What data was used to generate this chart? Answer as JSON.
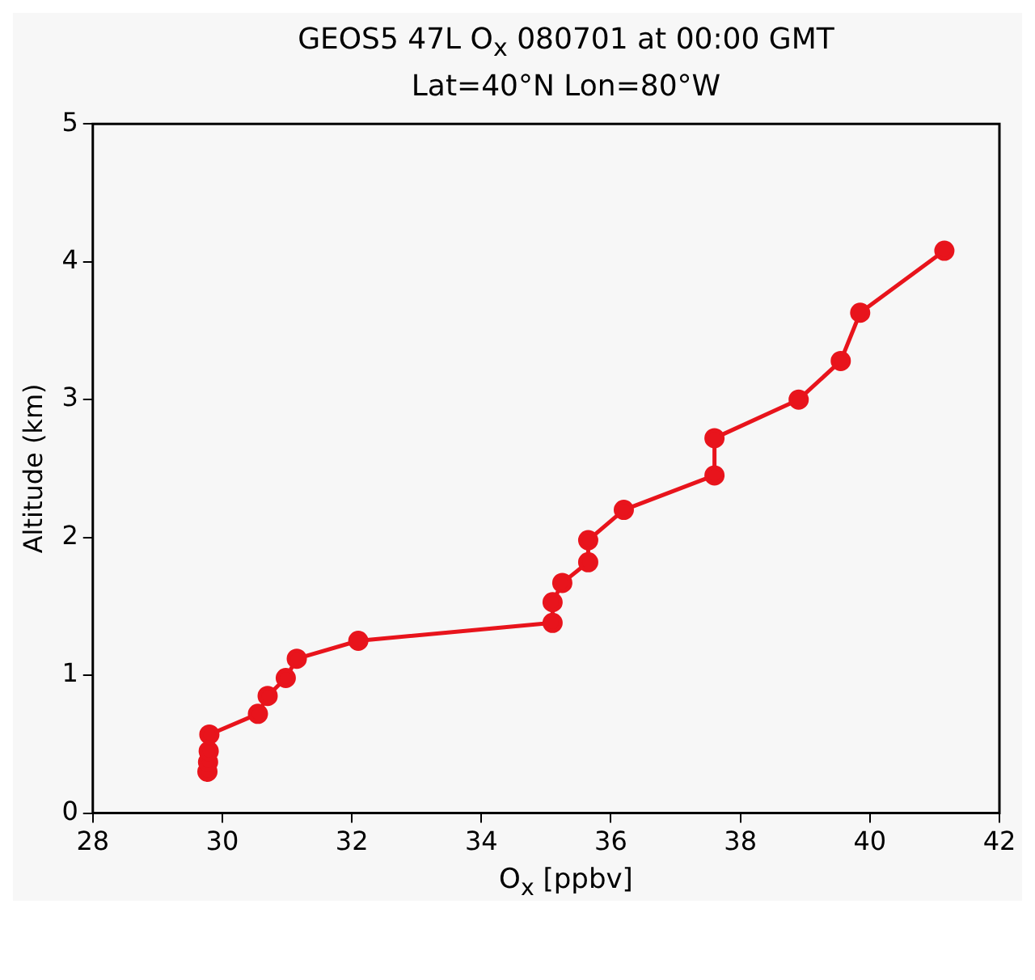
{
  "chart_data": {
    "type": "line",
    "title": "GEOS5 47L O$_{x}$ 080701 at 00:00 GMT",
    "subtitle": "Lat=40°N Lon=80°W",
    "xlabel": "O$_{x}$ [ppbv]",
    "ylabel": "Altitude (km)",
    "x": [
      29.77,
      29.78,
      29.79,
      29.8,
      30.55,
      30.7,
      30.98,
      31.15,
      32.1,
      35.1,
      35.1,
      35.25,
      35.65,
      35.65,
      36.2,
      37.6,
      37.6,
      38.9,
      39.55,
      39.85,
      41.15
    ],
    "series": [
      {
        "color": "#e8141c",
        "values": [
          0.3,
          0.37,
          0.45,
          0.57,
          0.72,
          0.85,
          0.98,
          1.12,
          1.25,
          1.38,
          1.53,
          1.67,
          1.82,
          1.98,
          2.2,
          2.45,
          2.72,
          3.0,
          3.28,
          3.63,
          4.08
        ]
      }
    ],
    "xlim": [
      28,
      42
    ],
    "xticks": [
      28,
      30,
      32,
      34,
      36,
      38,
      40,
      42
    ],
    "ylim": [
      0,
      5
    ],
    "yticks": [
      0,
      1,
      2,
      3,
      4,
      5
    ],
    "grid": false,
    "legend": false,
    "marker": "circle",
    "line_style": "solid"
  }
}
